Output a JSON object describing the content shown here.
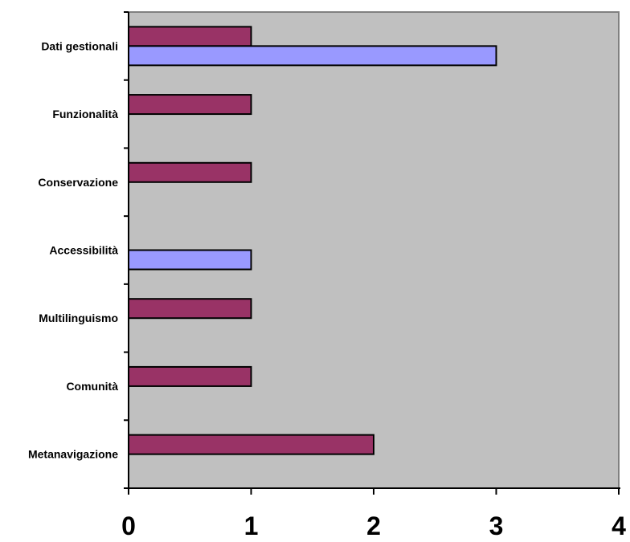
{
  "chart_data": {
    "type": "bar",
    "orientation": "horizontal",
    "categories": [
      "Metanavigazione",
      "Comunità",
      "Multilinguismo",
      "Accessibilità",
      "Conservazione",
      "Funzionalità",
      "Dati gestionali"
    ],
    "series": [
      {
        "color": "#993366",
        "values": [
          2,
          1,
          1,
          0,
          1,
          1,
          1
        ]
      },
      {
        "color": "#9999ff",
        "values": [
          0,
          0,
          0,
          1,
          0,
          0,
          3
        ]
      }
    ],
    "xlim": [
      0,
      4
    ],
    "x_ticks": [
      "0",
      "1",
      "2",
      "3",
      "4"
    ],
    "plot_background": "#c0c0c0",
    "grid": false,
    "legend": "none"
  }
}
